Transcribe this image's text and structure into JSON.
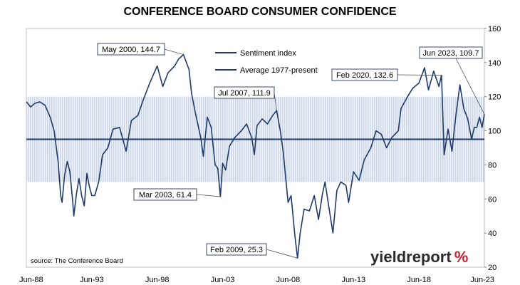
{
  "title": "CONFERENCE BOARD CONSUMER CONFIDENCE",
  "source": "source: The Conference Board",
  "brand": {
    "text_main": "yieldreport",
    "text_symbol": "%",
    "symbol_color": "#c8202e"
  },
  "colors": {
    "series": "#1f3a6b",
    "band": "#c9d3e6",
    "average": "#1f3a6b",
    "grid": "#d9d9d9"
  },
  "chart_data": {
    "type": "line",
    "xlim": [
      1988.375,
      2023.375
    ],
    "ylim": [
      20,
      160
    ],
    "x_tick_labels": [
      "Jun-88",
      "Jun-93",
      "Jun-98",
      "Jun-03",
      "Jun-08",
      "Jun-13",
      "Jun-18",
      "Jun-23"
    ],
    "x_tick_values": [
      1988.375,
      1993.375,
      1998.375,
      2003.375,
      2008.375,
      2013.375,
      2018.375,
      2023.375
    ],
    "y_ticks": [
      20,
      40,
      60,
      80,
      100,
      120,
      140,
      160
    ],
    "y_axis_side": "right",
    "grid": false,
    "legend_position": "top-center",
    "band": {
      "low": 70,
      "high": 120
    },
    "series": [
      {
        "name": "Sentiment index",
        "points": [
          [
            1988.375,
            117
          ],
          [
            1988.7,
            114
          ],
          [
            1989.0,
            116
          ],
          [
            1989.4,
            117
          ],
          [
            1989.8,
            115
          ],
          [
            1990.2,
            108
          ],
          [
            1990.5,
            100
          ],
          [
            1990.8,
            82
          ],
          [
            1991.0,
            62
          ],
          [
            1991.1,
            58
          ],
          [
            1991.3,
            74
          ],
          [
            1991.5,
            82
          ],
          [
            1991.7,
            76
          ],
          [
            1991.9,
            60
          ],
          [
            1992.0,
            50
          ],
          [
            1992.2,
            63
          ],
          [
            1992.4,
            72
          ],
          [
            1992.6,
            62
          ],
          [
            1992.8,
            56
          ],
          [
            1993.0,
            75
          ],
          [
            1993.2,
            67
          ],
          [
            1993.375,
            62
          ],
          [
            1993.6,
            62
          ],
          [
            1993.9,
            70
          ],
          [
            1994.2,
            86
          ],
          [
            1994.6,
            90
          ],
          [
            1995.0,
            101
          ],
          [
            1995.5,
            102
          ],
          [
            1996.0,
            88
          ],
          [
            1996.4,
            106
          ],
          [
            1996.9,
            109
          ],
          [
            1997.3,
            118
          ],
          [
            1997.8,
            128
          ],
          [
            1998.375,
            138
          ],
          [
            1998.8,
            126
          ],
          [
            1999.2,
            134
          ],
          [
            1999.7,
            138
          ],
          [
            2000.0,
            142
          ],
          [
            2000.375,
            144.7
          ],
          [
            2000.8,
            136
          ],
          [
            2001.0,
            122
          ],
          [
            2001.3,
            110
          ],
          [
            2001.7,
            96
          ],
          [
            2001.9,
            85
          ],
          [
            2002.2,
            108
          ],
          [
            2002.5,
            102
          ],
          [
            2002.8,
            80
          ],
          [
            2003.0,
            78
          ],
          [
            2003.2,
            61.4
          ],
          [
            2003.375,
            81
          ],
          [
            2003.6,
            77
          ],
          [
            2003.9,
            91
          ],
          [
            2004.3,
            96
          ],
          [
            2004.8,
            100
          ],
          [
            2005.2,
            104
          ],
          [
            2005.6,
            96
          ],
          [
            2005.8,
            86
          ],
          [
            2006.0,
            103
          ],
          [
            2006.4,
            107
          ],
          [
            2006.8,
            104
          ],
          [
            2007.2,
            109
          ],
          [
            2007.5,
            111.9
          ],
          [
            2007.8,
            99
          ],
          [
            2008.0,
            88
          ],
          [
            2008.375,
            58
          ],
          [
            2008.6,
            62
          ],
          [
            2008.9,
            38
          ],
          [
            2009.1,
            25.3
          ],
          [
            2009.3,
            40
          ],
          [
            2009.6,
            54
          ],
          [
            2010.0,
            53
          ],
          [
            2010.375,
            62
          ],
          [
            2010.7,
            48
          ],
          [
            2011.0,
            63
          ],
          [
            2011.2,
            70
          ],
          [
            2011.5,
            55
          ],
          [
            2011.8,
            40
          ],
          [
            2012.1,
            65
          ],
          [
            2012.4,
            70
          ],
          [
            2012.8,
            68
          ],
          [
            2013.0,
            58
          ],
          [
            2013.375,
            76
          ],
          [
            2013.8,
            71
          ],
          [
            2014.2,
            83
          ],
          [
            2014.7,
            90
          ],
          [
            2015.1,
            100
          ],
          [
            2015.5,
            98
          ],
          [
            2015.9,
            90
          ],
          [
            2016.3,
            96
          ],
          [
            2016.8,
            100
          ],
          [
            2017.0,
            113
          ],
          [
            2017.5,
            120
          ],
          [
            2017.9,
            125
          ],
          [
            2018.375,
            128
          ],
          [
            2018.8,
            137
          ],
          [
            2019.1,
            124
          ],
          [
            2019.5,
            135
          ],
          [
            2019.9,
            126
          ],
          [
            2020.1,
            132.6
          ],
          [
            2020.3,
            86
          ],
          [
            2020.6,
            101
          ],
          [
            2020.9,
            88
          ],
          [
            2021.2,
            109
          ],
          [
            2021.5,
            127
          ],
          [
            2021.8,
            113
          ],
          [
            2022.1,
            107
          ],
          [
            2022.4,
            95
          ],
          [
            2022.6,
            102
          ],
          [
            2022.8,
            102
          ],
          [
            2023.0,
            108
          ],
          [
            2023.2,
            102
          ],
          [
            2023.375,
            109.7
          ]
        ]
      },
      {
        "name": "Average 1977-present",
        "value": 95
      }
    ],
    "annotations": [
      {
        "label": "May 2000, 144.7",
        "x": 2000.375,
        "y": 144.7
      },
      {
        "label": "Mar 2003, 61.4",
        "x": 2003.2,
        "y": 61.4
      },
      {
        "label": "Jul 2007, 111.9",
        "x": 2007.5,
        "y": 111.9
      },
      {
        "label": "Feb 2009, 25.3",
        "x": 2009.1,
        "y": 25.3
      },
      {
        "label": "Feb 2020, 132.6",
        "x": 2020.1,
        "y": 132.6
      },
      {
        "label": "Jun 2023, 109.7",
        "x": 2023.375,
        "y": 109.7
      }
    ]
  }
}
